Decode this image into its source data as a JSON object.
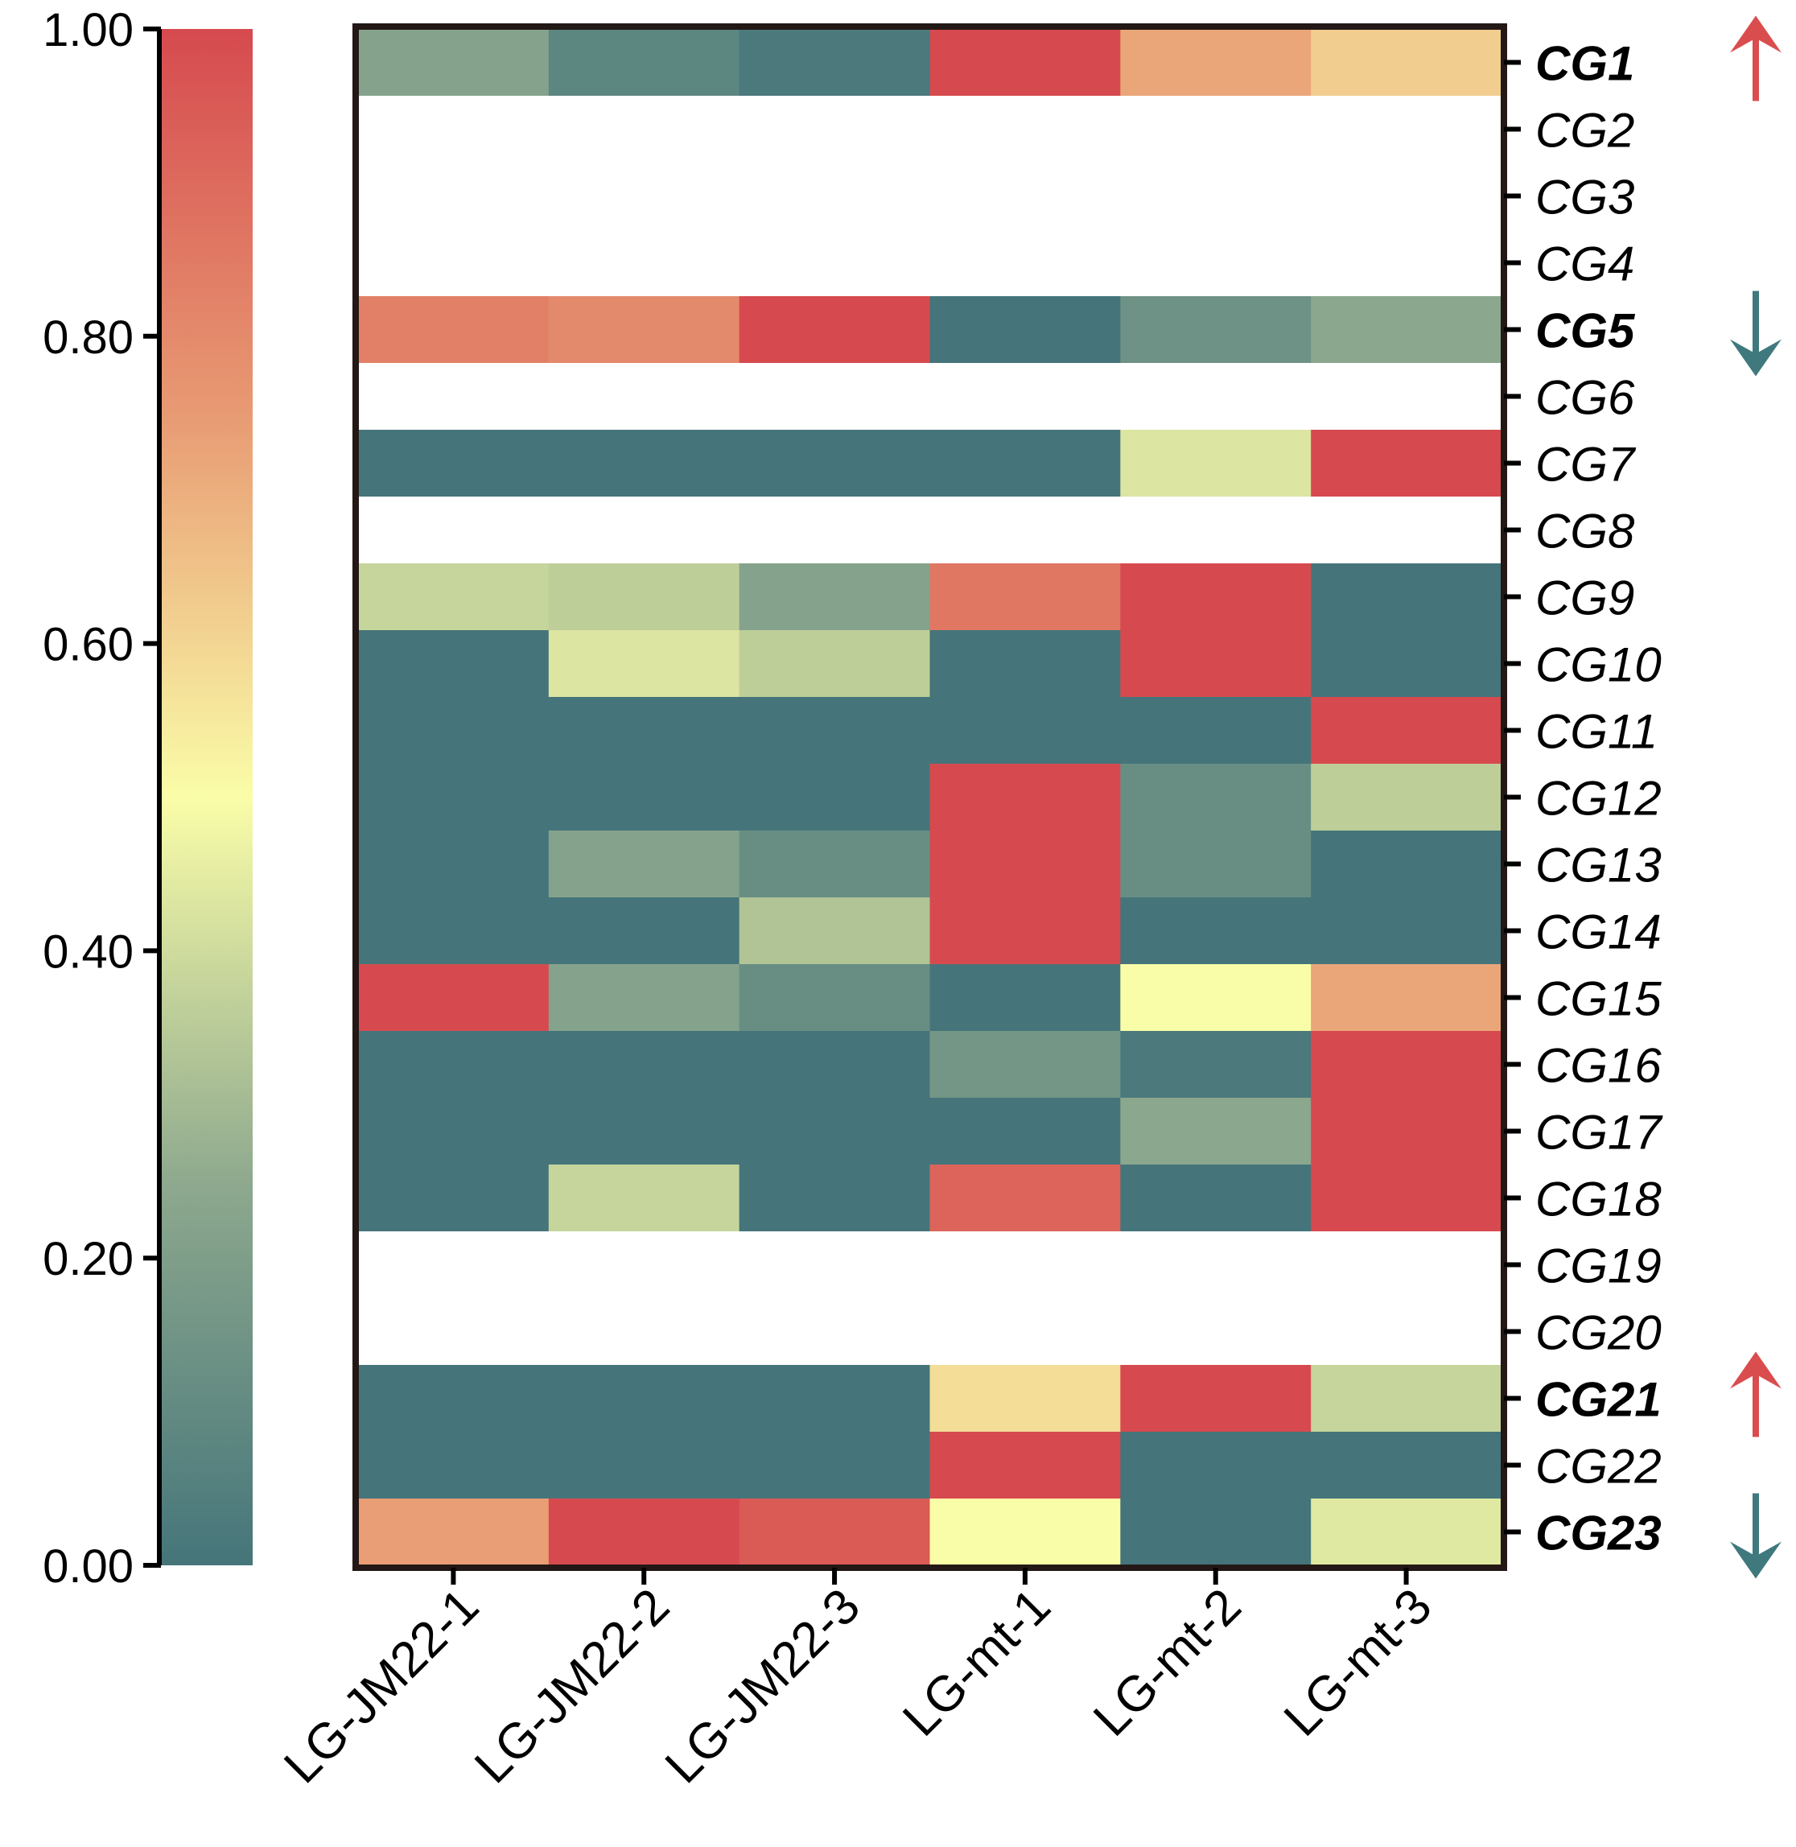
{
  "chart_data": {
    "type": "heatmap",
    "title": "",
    "columns": [
      "LG-JM22-1",
      "LG-JM22-2",
      "LG-JM22-3",
      "LG-mt-1",
      "LG-mt-2",
      "LG-mt-3"
    ],
    "rows": [
      "CG1",
      "CG2",
      "CG3",
      "CG4",
      "CG5",
      "CG6",
      "CG7",
      "CG8",
      "CG9",
      "CG10",
      "CG11",
      "CG12",
      "CG13",
      "CG14",
      "CG15",
      "CG16",
      "CG17",
      "CG18",
      "CG19",
      "CG20",
      "CG21",
      "CG22",
      "CG23"
    ],
    "values": [
      [
        0.22,
        0.08,
        0.02,
        1.0,
        0.72,
        0.62
      ],
      [
        null,
        null,
        null,
        null,
        null,
        null
      ],
      [
        null,
        null,
        null,
        null,
        null,
        null
      ],
      [
        null,
        null,
        null,
        null,
        null,
        null
      ],
      [
        0.83,
        0.8,
        1.0,
        0.0,
        0.14,
        0.24
      ],
      [
        null,
        null,
        null,
        null,
        null,
        null
      ],
      [
        0.0,
        0.0,
        0.0,
        0.0,
        0.43,
        1.0
      ],
      [
        null,
        null,
        null,
        null,
        null,
        null
      ],
      [
        0.38,
        0.36,
        0.22,
        0.86,
        1.0,
        0.0
      ],
      [
        0.0,
        0.43,
        0.36,
        0.0,
        1.0,
        0.0
      ],
      [
        0.0,
        0.0,
        0.0,
        0.0,
        0.0,
        1.0
      ],
      [
        0.0,
        0.0,
        0.0,
        1.0,
        0.12,
        0.36
      ],
      [
        0.0,
        0.22,
        0.12,
        1.0,
        0.12,
        0.0
      ],
      [
        0.0,
        0.0,
        0.33,
        1.0,
        0.0,
        0.0
      ],
      [
        1.0,
        0.22,
        0.12,
        0.0,
        0.5,
        0.72
      ],
      [
        0.0,
        0.0,
        0.0,
        0.16,
        0.02,
        1.0
      ],
      [
        0.0,
        0.0,
        0.0,
        0.0,
        0.24,
        1.0
      ],
      [
        0.0,
        0.38,
        0.0,
        0.92,
        0.0,
        1.0
      ],
      [
        null,
        null,
        null,
        null,
        null,
        null
      ],
      [
        null,
        null,
        null,
        null,
        null,
        null
      ],
      [
        0.0,
        0.0,
        0.0,
        0.58,
        1.0,
        0.38
      ],
      [
        0.0,
        0.0,
        0.0,
        1.0,
        0.0,
        0.0
      ],
      [
        0.74,
        1.0,
        0.95,
        0.5,
        0.0,
        0.44
      ]
    ],
    "highlights": [
      {
        "row": "CG1",
        "direction": "up",
        "color": "#d94d4f"
      },
      {
        "row": "CG5",
        "direction": "down",
        "color": "#3f797d"
      },
      {
        "row": "CG21",
        "direction": "up",
        "color": "#d94d4f"
      },
      {
        "row": "CG23",
        "direction": "down",
        "color": "#3f797d"
      }
    ],
    "colorbar": {
      "range": [
        0,
        1
      ],
      "ticks": [
        "0.00",
        "0.20",
        "0.40",
        "0.60",
        "0.80",
        "1.00"
      ],
      "stops": [
        {
          "v": 0.0,
          "color": "#45757a"
        },
        {
          "v": 0.25,
          "color": "#8ea98e"
        },
        {
          "v": 0.5,
          "color": "#fafda8"
        },
        {
          "v": 0.75,
          "color": "#e89a73"
        },
        {
          "v": 1.0,
          "color": "#d64a4f"
        }
      ]
    },
    "missing_color": "#ffffff",
    "frame_color": "#231815"
  }
}
